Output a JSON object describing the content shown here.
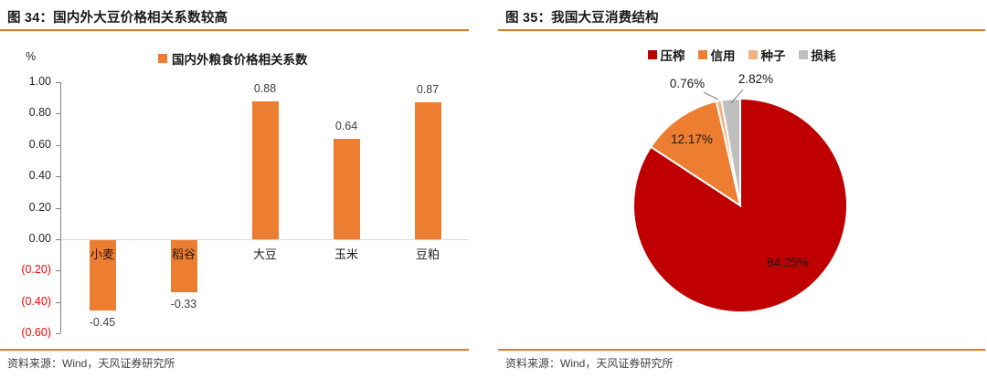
{
  "chart_data": [
    {
      "type": "bar",
      "title": "图 34：国内外大豆价格相关系数较高",
      "legend": "国内外粮食价格相关系数",
      "unit": "%",
      "categories": [
        "小麦",
        "稻谷",
        "大豆",
        "玉米",
        "豆粕"
      ],
      "values": [
        -0.45,
        -0.33,
        0.88,
        0.64,
        0.87
      ],
      "value_labels": [
        "-0.45",
        "-0.33",
        "0.88",
        "0.64",
        "0.87"
      ],
      "ylim": [
        -0.6,
        1.0
      ],
      "y_tick_step": 0.2,
      "y_tick_labels": [
        "1.00",
        "0.80",
        "0.60",
        "0.40",
        "0.20",
        "0.00",
        "(0.20)",
        "(0.40)",
        "(0.60)"
      ],
      "grid": false,
      "legend_position": "top",
      "bar_color": "#ED7D31",
      "source": "资料来源：Wind，天风证券研究所"
    },
    {
      "type": "pie",
      "title": "图 35：我国大豆消费结构",
      "slices": [
        {
          "label": "压榨",
          "value": 84.25,
          "display": "84.25%",
          "color": "#C00000"
        },
        {
          "label": "信用",
          "value": 12.17,
          "display": "12.17%",
          "color": "#ED7D31"
        },
        {
          "label": "种子",
          "value": 0.76,
          "display": "0.76%",
          "color": "#F4B183"
        },
        {
          "label": "损耗",
          "value": 2.82,
          "display": "2.82%",
          "color": "#BFBFBF"
        }
      ],
      "start_angle_deg": 0,
      "direction": "clockwise",
      "legend_position": "top",
      "source": "资料来源：Wind，天风证券研究所"
    }
  ],
  "colors": {
    "bar_orange": "#ED7D31",
    "rule_orange": "#E87722",
    "pie_red": "#C00000",
    "pie_orange": "#ED7D31",
    "pie_light_orange": "#F4B183",
    "pie_gray": "#BFBFBF",
    "negative_tick_red": "#FF0000",
    "axis_gray": "#808080",
    "zero_line_gray": "#D9D9D9",
    "text_dark": "#1A1A1A",
    "source_text_gray": "#404040"
  }
}
